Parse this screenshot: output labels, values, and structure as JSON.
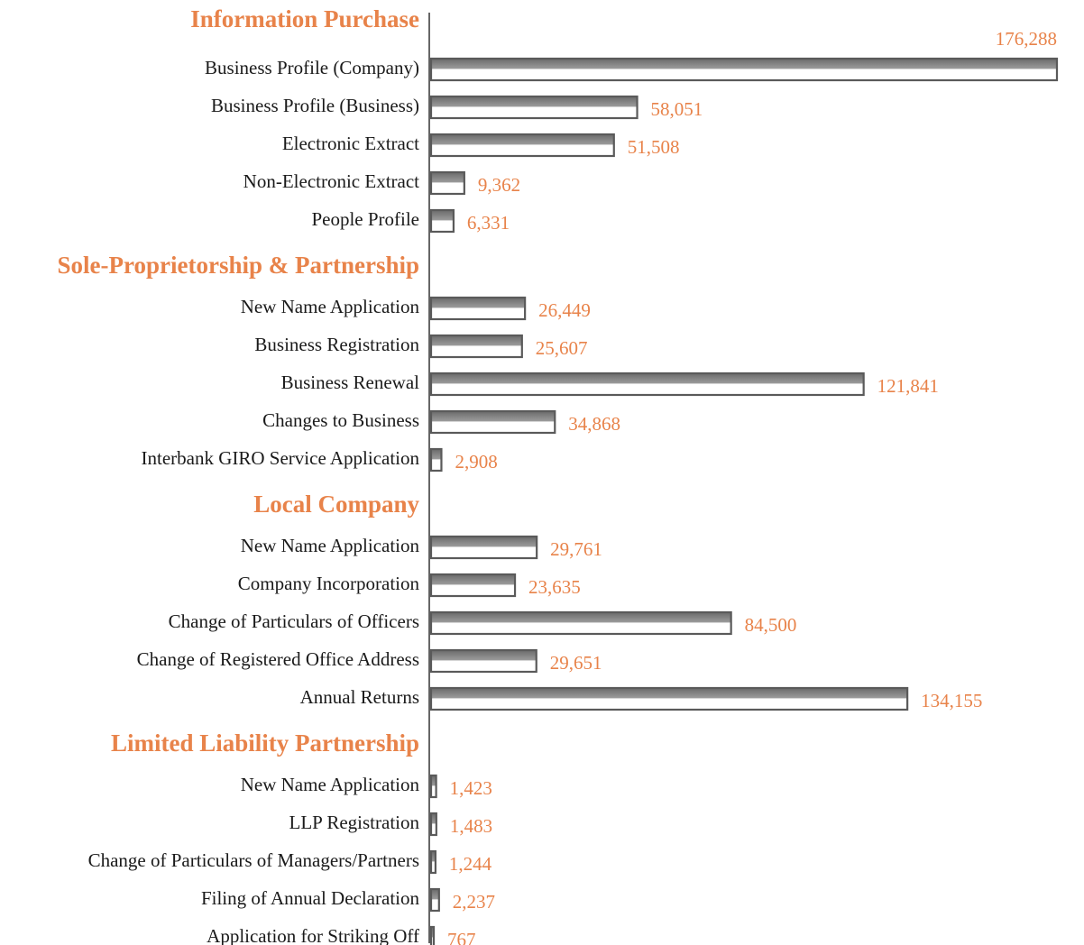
{
  "chart_data": {
    "type": "bar",
    "orientation": "horizontal",
    "color": "#5a5a5a",
    "label_color": "#e8834a",
    "groups": [
      {
        "name": "Information Purchase",
        "categories": [
          "Business Profile (Company)",
          "Business Profile (Business)",
          "Electronic Extract",
          "Non-Electronic Extract",
          "People Profile"
        ],
        "values": [
          176288,
          58051,
          51508,
          9362,
          6331
        ],
        "value_labels": [
          "176,288",
          "58,051",
          "51,508",
          "9,362",
          "6,331"
        ]
      },
      {
        "name": "Sole-Proprietorship & Partnership",
        "categories": [
          "New Name Application",
          "Business Registration",
          "Business Renewal",
          "Changes to Business",
          "Interbank GIRO Service Application"
        ],
        "values": [
          26449,
          25607,
          121841,
          34868,
          2908
        ],
        "value_labels": [
          "26,449",
          "25,607",
          "121,841",
          "34,868",
          "2,908"
        ]
      },
      {
        "name": "Local Company",
        "categories": [
          "New Name Application",
          "Company Incorporation",
          "Change of Particulars of Officers",
          "Change of Registered Office Address",
          "Annual Returns"
        ],
        "values": [
          29761,
          23635,
          84500,
          29651,
          134155
        ],
        "value_labels": [
          "29,761",
          "23,635",
          "84,500",
          "29,651",
          "134,155"
        ]
      },
      {
        "name": "Limited Liability Partnership",
        "categories": [
          "New Name Application",
          "LLP Registration",
          "Change of Particulars of Managers/Partners",
          "Filing of Annual Declaration",
          "Application for Striking Off"
        ],
        "values": [
          1423,
          1483,
          1244,
          2237,
          767
        ],
        "value_labels": [
          "1,423",
          "1,483",
          "1,244",
          "2,237",
          "767"
        ]
      }
    ]
  }
}
